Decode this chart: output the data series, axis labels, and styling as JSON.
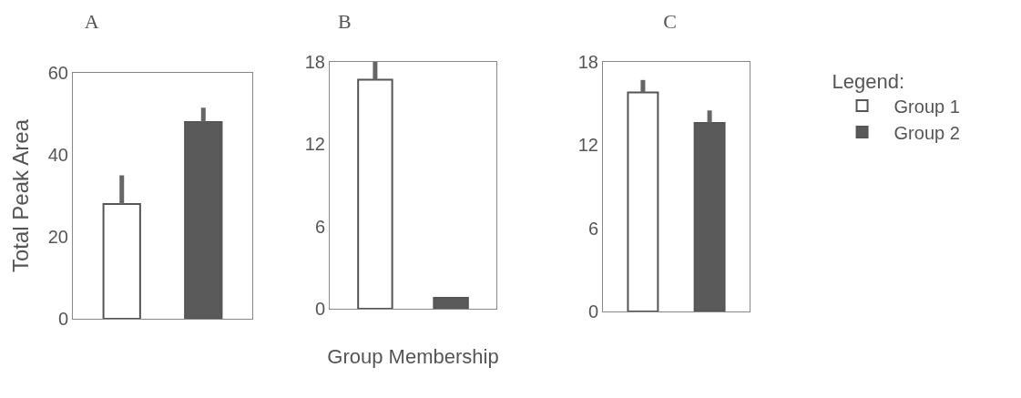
{
  "chart_data": [
    {
      "type": "bar",
      "title": "A",
      "ylabel": "Total Peak Area",
      "categories": [
        null,
        null
      ],
      "ylim": [
        0,
        60
      ],
      "yticks": [
        0,
        20,
        40,
        60
      ],
      "grid": false,
      "series": [
        {
          "color": "#ffffff",
          "values": [
            28,
            null
          ],
          "errors": [
            [
              28,
              35
            ],
            null
          ]
        },
        {
          "color": "#5a5a5a",
          "values": [
            null,
            48
          ],
          "errors": [
            null,
            [
              48,
              51.5
            ]
          ]
        }
      ]
    },
    {
      "type": "bar",
      "title": "B",
      "xlabel": "Group Membership",
      "categories": [
        null,
        null
      ],
      "ylim": [
        0,
        18
      ],
      "yticks": [
        0,
        6,
        12,
        18
      ],
      "grid": false,
      "series": [
        {
          "color": "#ffffff",
          "values": [
            16.7,
            null
          ],
          "errors": [
            [
              16.7,
              18
            ],
            null
          ]
        },
        {
          "color": "#5a5a5a",
          "values": [
            null,
            0.8
          ],
          "errors": [
            null,
            null
          ]
        }
      ]
    },
    {
      "type": "bar",
      "title": "C",
      "legend_title": "Legend:",
      "legend": "right",
      "categories": [
        null,
        null
      ],
      "ylim": [
        0,
        18
      ],
      "yticks": [
        0,
        6,
        12,
        18
      ],
      "grid": false,
      "series": [
        {
          "name": "Group 1",
          "color": "#ffffff",
          "values": [
            15.8,
            null
          ],
          "errors": [
            [
              15.8,
              16.7
            ],
            null
          ]
        },
        {
          "name": "Group 2",
          "color": "#5a5a5a",
          "values": [
            null,
            13.6
          ],
          "errors": [
            null,
            [
              13.6,
              14.5
            ]
          ]
        }
      ]
    }
  ]
}
